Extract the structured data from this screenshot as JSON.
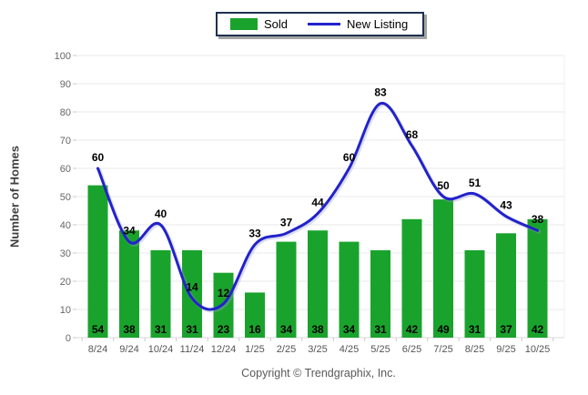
{
  "legend": {
    "items": [
      {
        "label": "Sold",
        "type": "bar",
        "color": "#1aa32c"
      },
      {
        "label": "New Listing",
        "type": "line",
        "color": "#2222cc"
      }
    ]
  },
  "footer": {
    "copyright": "Copyright © Trendgraphix, Inc."
  },
  "chart_data": {
    "type": "bar",
    "categories": [
      "8/24",
      "9/24",
      "10/24",
      "11/24",
      "12/24",
      "1/25",
      "2/25",
      "3/25",
      "4/25",
      "5/25",
      "6/25",
      "7/25",
      "8/25",
      "9/25",
      "10/25"
    ],
    "series": [
      {
        "name": "Sold",
        "type": "bar",
        "color": "#1aa32c",
        "values": [
          54,
          38,
          31,
          31,
          23,
          16,
          34,
          38,
          34,
          31,
          42,
          49,
          31,
          37,
          42
        ]
      },
      {
        "name": "New Listing",
        "type": "line",
        "color": "#2222cc",
        "values": [
          60,
          34,
          40,
          14,
          12,
          33,
          37,
          44,
          60,
          83,
          68,
          50,
          51,
          43,
          38
        ]
      }
    ],
    "title": "",
    "xlabel": "",
    "ylabel": "Number of Homes",
    "ylim": [
      0,
      100
    ],
    "yticks": [
      0,
      10,
      20,
      30,
      40,
      50,
      60,
      70,
      80,
      90,
      100
    ],
    "grid": true,
    "legend_position": "top",
    "value_labels": true
  }
}
